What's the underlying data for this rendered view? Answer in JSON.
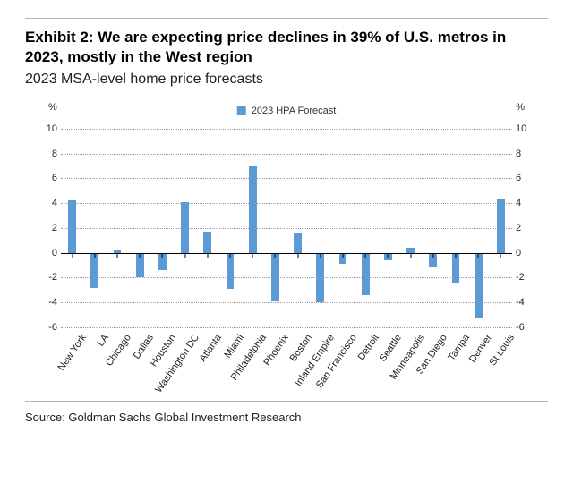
{
  "title": "Exhibit 2: We are expecting price declines in 39% of U.S. metros in 2023, mostly in the West region",
  "subtitle": "2023 MSA-level home price forecasts",
  "source": "Source: Goldman Sachs Global Investment Research",
  "chart": {
    "type": "bar",
    "unit_left": "%",
    "unit_right": "%",
    "legend_label": "2023 HPA Forecast",
    "legend_color": "#5b9bd5",
    "bar_color": "#5b9bd5",
    "background_color": "#ffffff",
    "grid_color": "#9a9a9a",
    "zero_line_color": "#000000",
    "ylim": [
      -6,
      10
    ],
    "ytick_step": 2,
    "label_fontsize": 11,
    "bar_width_ratio": 0.35,
    "categories": [
      "New York",
      "LA",
      "Chicago",
      "Dallas",
      "Houston",
      "Washington DC",
      "Atlanta",
      "Miami",
      "Philadelphia",
      "Phoenix",
      "Boston",
      "Inland Empire",
      "San Francisco",
      "Detroit",
      "Seattle",
      "Minneapolis",
      "San Diego",
      "Tampa",
      "Denver",
      "St Louis"
    ],
    "values": [
      4.2,
      -2.8,
      0.3,
      -2.0,
      -1.4,
      4.1,
      1.7,
      -2.9,
      7.0,
      -3.9,
      1.6,
      -4.0,
      -0.9,
      -3.4,
      -0.6,
      0.4,
      -1.1,
      -2.4,
      -5.2,
      4.4
    ]
  }
}
